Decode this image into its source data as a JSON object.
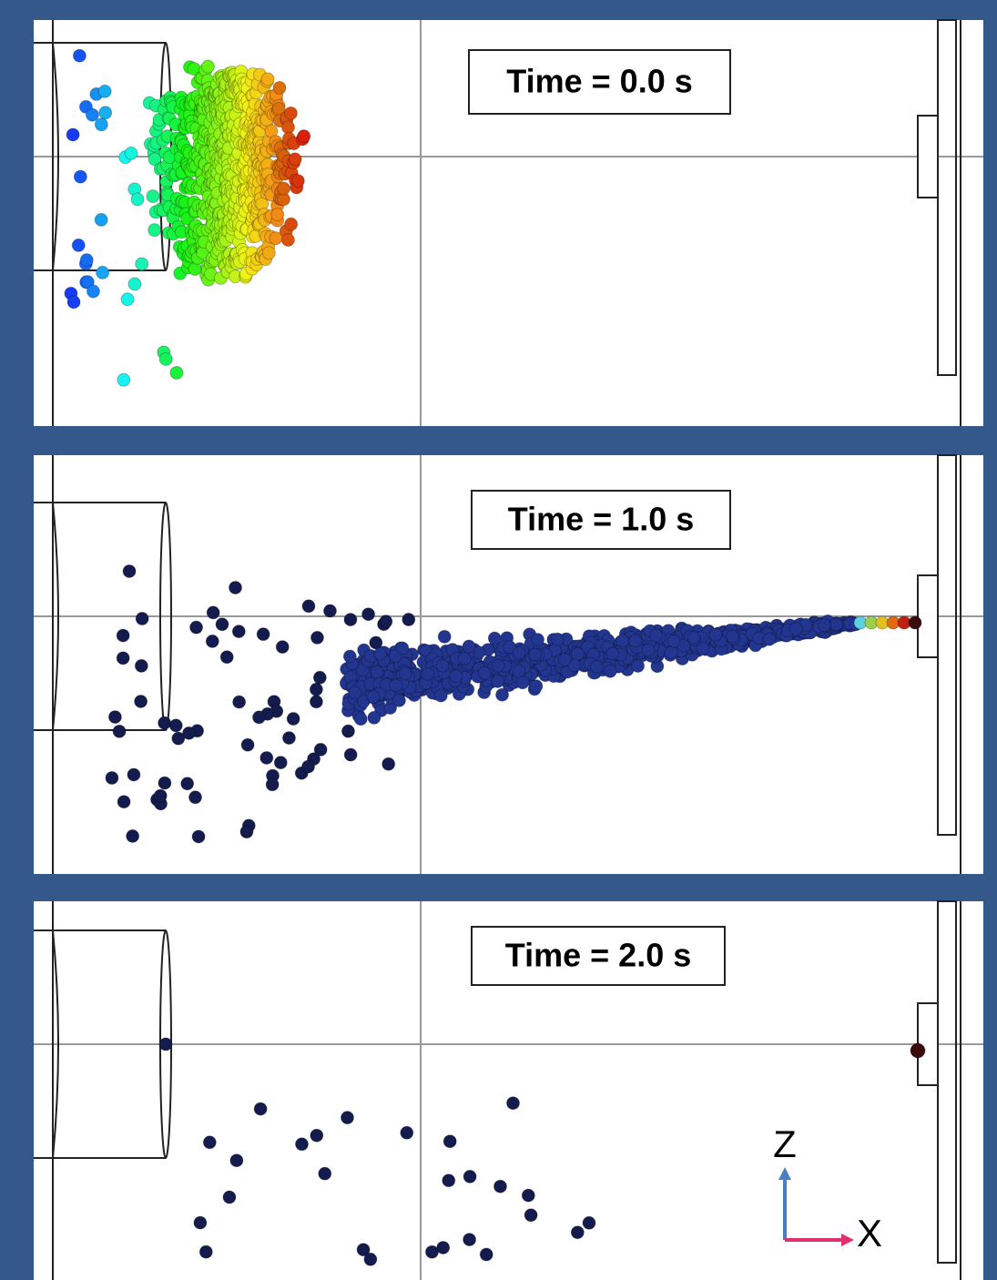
{
  "panels": [
    {
      "label": "Time = 0.0 s"
    },
    {
      "label": "Time = 1.0 s"
    },
    {
      "label": "Time = 2.0 s"
    }
  ],
  "axes": {
    "vertical": "Z",
    "horizontal": "X"
  }
}
